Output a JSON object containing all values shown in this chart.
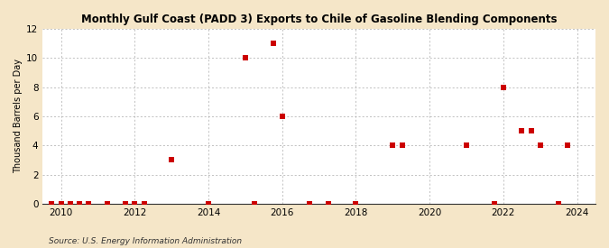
{
  "title": "Monthly Gulf Coast (PADD 3) Exports to Chile of Gasoline Blending Components",
  "ylabel": "Thousand Barrels per Day",
  "source": "Source: U.S. Energy Information Administration",
  "background_color": "#f5e6c8",
  "plot_bg_color": "#ffffff",
  "marker_color": "#cc0000",
  "marker": "s",
  "marker_size": 4,
  "xlim": [
    2009.5,
    2024.5
  ],
  "ylim": [
    0,
    12
  ],
  "yticks": [
    0,
    2,
    4,
    6,
    8,
    10,
    12
  ],
  "xticks": [
    2010,
    2012,
    2014,
    2016,
    2018,
    2020,
    2022,
    2024
  ],
  "grid_color": "#aaaaaa",
  "data_x": [
    2009.75,
    2010.0,
    2010.25,
    2010.5,
    2010.75,
    2011.25,
    2011.75,
    2012.0,
    2012.25,
    2013.0,
    2014.0,
    2015.0,
    2015.25,
    2015.75,
    2016.0,
    2016.75,
    2017.25,
    2018.0,
    2019.0,
    2019.25,
    2021.0,
    2021.75,
    2022.0,
    2022.5,
    2022.75,
    2023.0,
    2023.5,
    2023.75
  ],
  "data_y": [
    0,
    0,
    0,
    0,
    0,
    0,
    0,
    0,
    0,
    3,
    0,
    10,
    0,
    11,
    6,
    0,
    0,
    0,
    4,
    4,
    4,
    0,
    8,
    5,
    5,
    4,
    0,
    4
  ]
}
